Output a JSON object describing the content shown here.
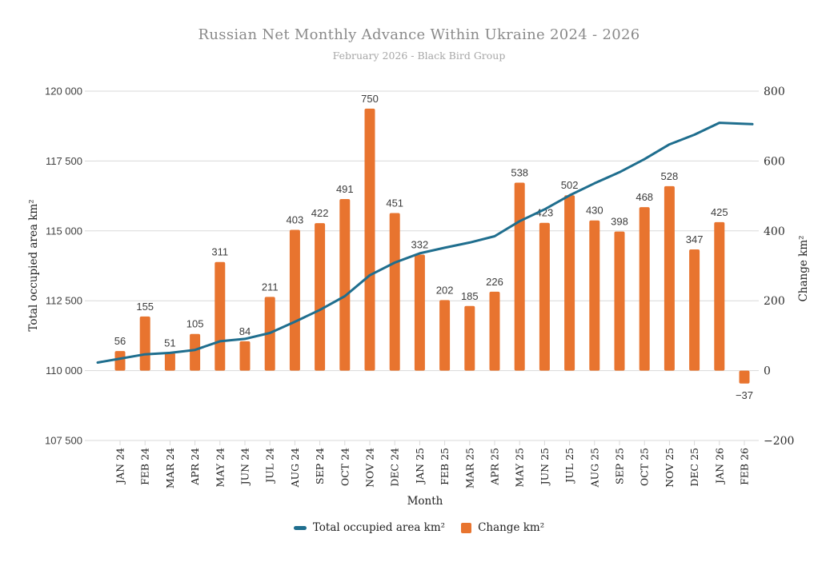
{
  "header": {
    "title": "Russian Net Monthly Advance Within Ukraine 2024 - 2026",
    "subtitle": "February 2026 - Black Bird Group"
  },
  "chart_data": {
    "type": "bar",
    "subtype": "bar-and-line-combo",
    "categories": [
      "JAN 24",
      "FEB 24",
      "MAR 24",
      "APR 24",
      "MAY 24",
      "JUN 24",
      "JUL 24",
      "AUG 24",
      "SEP 24",
      "OCT 24",
      "NOV 24",
      "DEC 24",
      "JAN 25",
      "FEB 25",
      "MAR 25",
      "APR 25",
      "MAY 25",
      "JUN 25",
      "JUL 25",
      "AUG 25",
      "SEP 25",
      "OCT 25",
      "NOV 25",
      "DEC 25",
      "JAN 26",
      "FEB 26"
    ],
    "series": [
      {
        "name": "Total occupied area km²",
        "type": "line",
        "axis": "left",
        "color": "#1f6e8e",
        "values": [
          110429,
          110584,
          110635,
          110740,
          111051,
          111135,
          111346,
          111749,
          112171,
          112662,
          113412,
          113863,
          114195,
          114397,
          114582,
          114808,
          115346,
          115769,
          116271,
          116701,
          117099,
          117567,
          118095,
          118442,
          118867,
          118830
        ]
      },
      {
        "name": "Change km²",
        "type": "bar",
        "axis": "right",
        "color": "#e8742f",
        "values": [
          56,
          155,
          51,
          105,
          311,
          84,
          211,
          403,
          422,
          491,
          750,
          451,
          332,
          202,
          185,
          226,
          538,
          423,
          502,
          430,
          398,
          468,
          528,
          347,
          425,
          -37
        ],
        "labels": [
          "56",
          "155",
          "51",
          "105",
          "311",
          "84",
          "211",
          "403",
          "422",
          "491",
          "750",
          "451",
          "332",
          "202",
          "185",
          "226",
          "538",
          "423",
          "502",
          "430",
          "398",
          "468",
          "528",
          "347",
          "425",
          "−37"
        ]
      }
    ],
    "left_axis": {
      "title": "Total occupied area km²",
      "range": [
        107500,
        120000
      ],
      "tick_values": [
        120000,
        117500,
        115000,
        112500,
        110000,
        107500
      ],
      "tick_labels": [
        "120 000",
        "117 500",
        "115 000",
        "112 500",
        "110 000",
        "107 500"
      ]
    },
    "right_axis": {
      "title": "Change km²",
      "range": [
        -200,
        800
      ],
      "tick_values": [
        800,
        600,
        400,
        200,
        0,
        -200
      ],
      "tick_labels": [
        "800",
        "600",
        "400",
        "200",
        "0",
        "−200"
      ]
    },
    "x_axis": {
      "title": "Month"
    },
    "grid": true,
    "legend_position": "bottom",
    "legend": [
      {
        "label": "Total occupied area km²",
        "marker": "line",
        "color": "#1f6e8e"
      },
      {
        "label": "Change km²",
        "marker": "square",
        "color": "#e8742f"
      }
    ],
    "colors": {
      "gridline": "#d9d9d9",
      "bar": "#e8742f",
      "line": "#1f6e8e",
      "title_text": "#8a8a8a",
      "subtitle_text": "#a7a7a7"
    }
  }
}
